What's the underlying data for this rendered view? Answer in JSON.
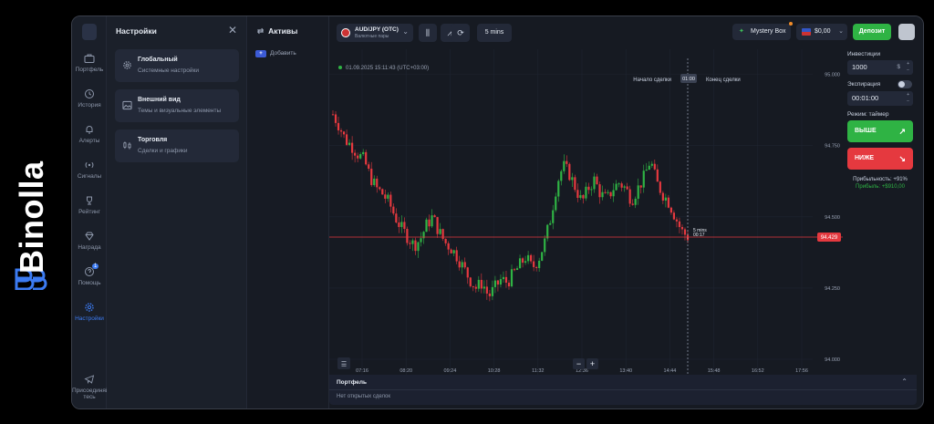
{
  "brand": {
    "name": "Binolla",
    "logo_icon": "binolla-logo-icon"
  },
  "nav": {
    "items": [
      {
        "label": "Портфель",
        "icon": "briefcase-icon"
      },
      {
        "label": "История",
        "icon": "history-icon"
      },
      {
        "label": "Алерты",
        "icon": "bell-icon"
      },
      {
        "label": "Сигналы",
        "icon": "signal-icon"
      },
      {
        "label": "Рейтинг",
        "icon": "trophy-icon"
      },
      {
        "label": "Награда",
        "icon": "diamond-icon"
      },
      {
        "label": "Помощь",
        "icon": "help-icon",
        "badge": "1"
      },
      {
        "label": "Настройки",
        "icon": "gear-icon",
        "active": true
      },
      {
        "label": "Присоединяй тесь",
        "icon": "telegram-icon"
      }
    ]
  },
  "settings": {
    "title": "Настройки",
    "cards": [
      {
        "title": "Глобальный",
        "subtitle": "Системные настройки",
        "icon": "gear-icon"
      },
      {
        "title": "Внешний вид",
        "subtitle": "Темы и визуальные элементы",
        "icon": "image-icon"
      },
      {
        "title": "Торговля",
        "subtitle": "Сделки и графики",
        "icon": "candles-icon"
      }
    ]
  },
  "assets": {
    "title": "Активы",
    "add_label": "Добавить"
  },
  "topbar": {
    "pair_name": "AUD/JPY (OTC)",
    "pair_sub": "Валютные пары",
    "timeframe": "5 mins",
    "mystery_label": "Mystery Box",
    "balance": "$0,00",
    "deposit_label": "Депозит"
  },
  "chart_data": {
    "type": "candlestick",
    "timestamp": "01.09.2025 15:11:43 (UTC+03:00)",
    "x_ticks": [
      "07:16",
      "08:20",
      "09:24",
      "10:28",
      "11:32",
      "12:36",
      "13:40",
      "14:44",
      "15:48",
      "16:52",
      "17:56"
    ],
    "y_ticks": [
      "95.000",
      "94.750",
      "94.500",
      "94.250",
      "94.000"
    ],
    "ylim": [
      94.0,
      95.05
    ],
    "current_price": "94.429",
    "current_price_value": 94.429,
    "trade_start_label": "Начало сделки",
    "trade_end_label": "Конец сделки",
    "timer_label": "01:00",
    "period_label": "5 mins",
    "countdown": "00:17",
    "path": [
      94.86,
      94.82,
      94.77,
      94.75,
      94.72,
      94.7,
      94.64,
      94.6,
      94.58,
      94.55,
      94.5,
      94.46,
      94.43,
      94.4,
      94.42,
      94.47,
      94.5,
      94.45,
      94.41,
      94.39,
      94.36,
      94.32,
      94.28,
      94.25,
      94.27,
      94.22,
      94.25,
      94.28,
      94.27,
      94.3,
      94.33,
      94.36,
      94.32,
      94.35,
      94.41,
      94.5,
      94.62,
      94.68,
      94.65,
      94.6,
      94.55,
      94.6,
      94.63,
      94.58,
      94.56,
      94.6,
      94.62,
      94.6,
      94.56,
      94.6,
      94.64,
      94.7,
      94.62,
      94.58,
      94.55,
      94.5,
      94.45,
      94.43
    ]
  },
  "portfolio": {
    "title": "Портфель",
    "empty_text": "Нет открытых сделок"
  },
  "trade": {
    "investment_label": "Инвестиции",
    "investment_value": "1000",
    "currency": "$",
    "expiration_label": "Экспирация",
    "expiration_value": "00:01:00",
    "mode_label": "Режим: таймер",
    "up_label": "ВЫШЕ",
    "down_label": "НИЖЕ",
    "profitability": "Прибыльность: +91%",
    "profit": "Прибыль: +$910,00",
    "colors": {
      "up": "#2fb344",
      "down": "#e5393f"
    }
  }
}
